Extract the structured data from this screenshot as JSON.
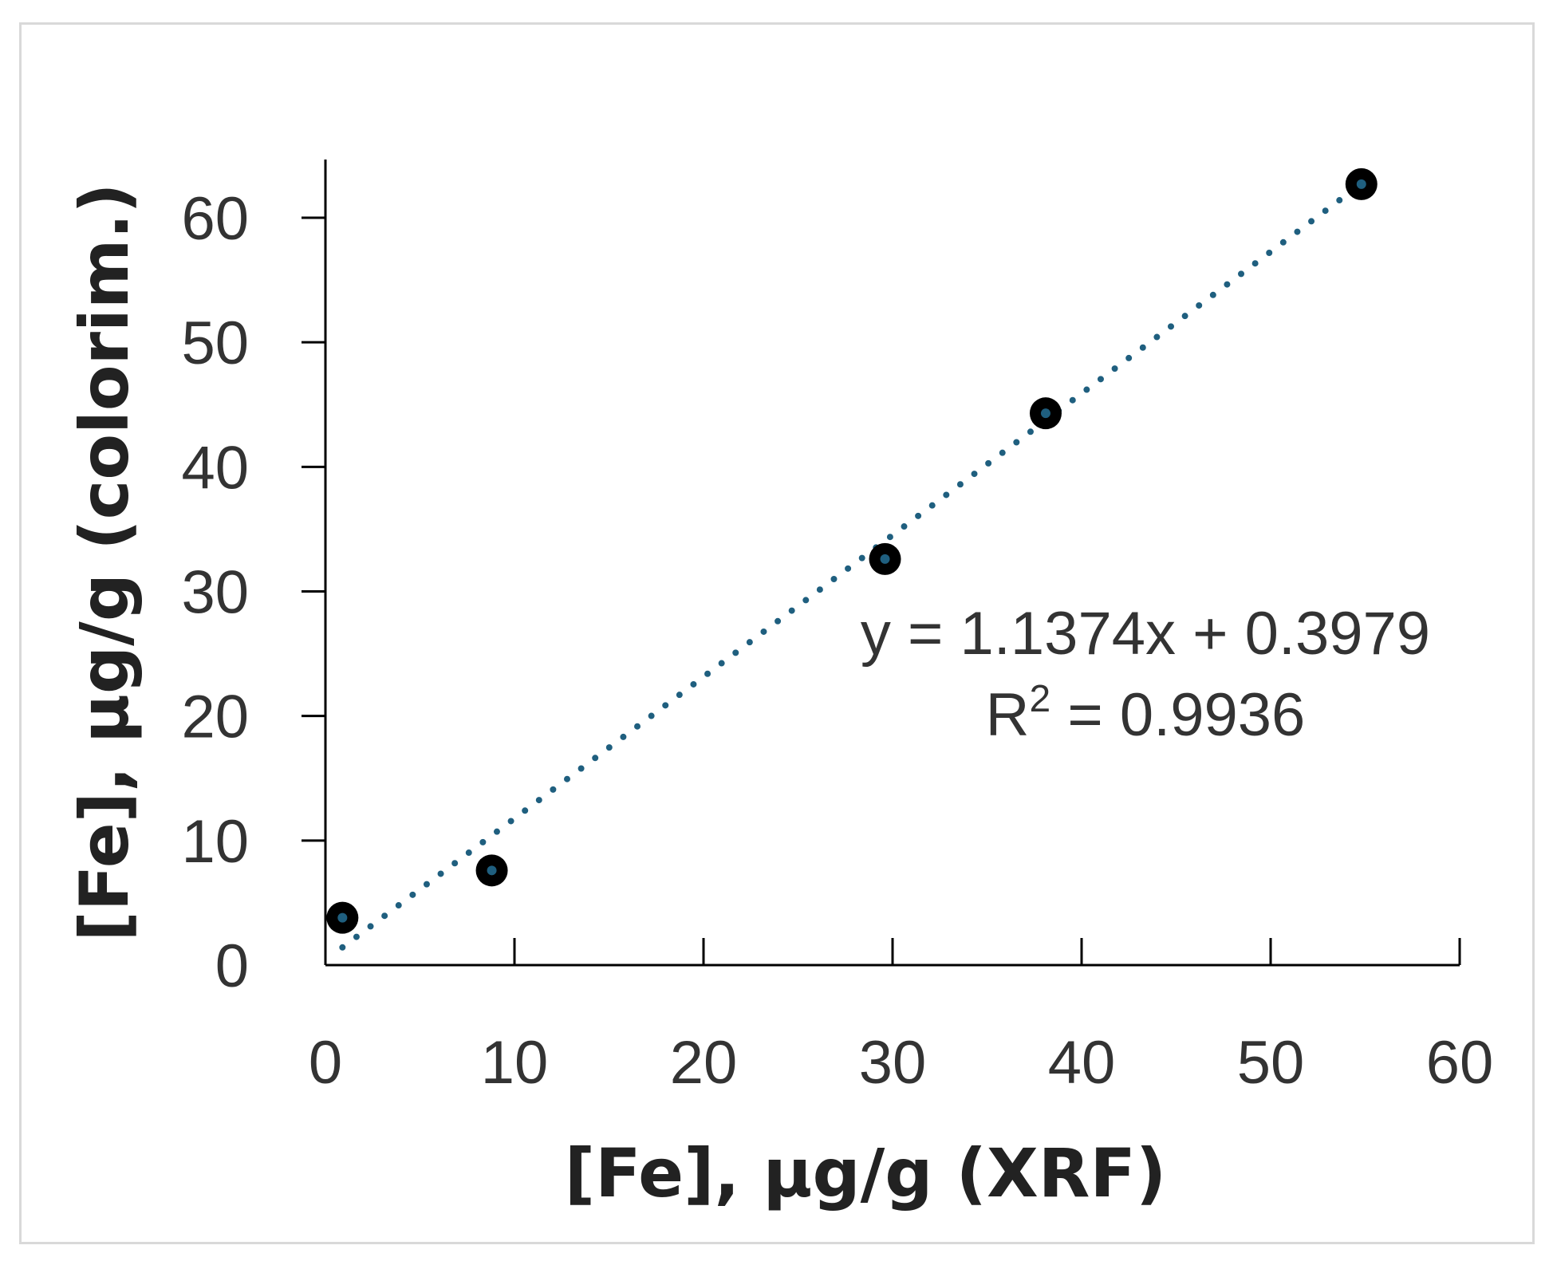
{
  "chart_data": {
    "type": "scatter",
    "title": "",
    "xlabel": "[Fe], µg/g (XRF)",
    "ylabel": "[Fe], µg/g (colorim.)",
    "xlim": [
      0,
      60
    ],
    "ylim": [
      0,
      60
    ],
    "xticks": [
      0,
      10,
      20,
      30,
      40,
      50,
      60
    ],
    "yticks": [
      0,
      10,
      20,
      30,
      40,
      50,
      60
    ],
    "grid": false,
    "legend": "none",
    "series": [
      {
        "x": [
          0.9,
          8.8,
          29.6,
          38.1,
          54.8
        ],
        "y": [
          3.8,
          7.6,
          32.6,
          44.3,
          62.7
        ],
        "marker_color": "#000000",
        "marker_center_color": "#1f5f7f"
      }
    ],
    "trendline": {
      "slope": 1.1374,
      "intercept": 0.3979,
      "x_range": [
        0.9,
        54.8
      ],
      "style": "dotted",
      "color": "#1f5f7f",
      "equation_text": "y = 1.1374x + 0.3979",
      "r2_prefix": "R",
      "r2_sup": "2",
      "r2_suffix": " = 0.9936"
    }
  }
}
